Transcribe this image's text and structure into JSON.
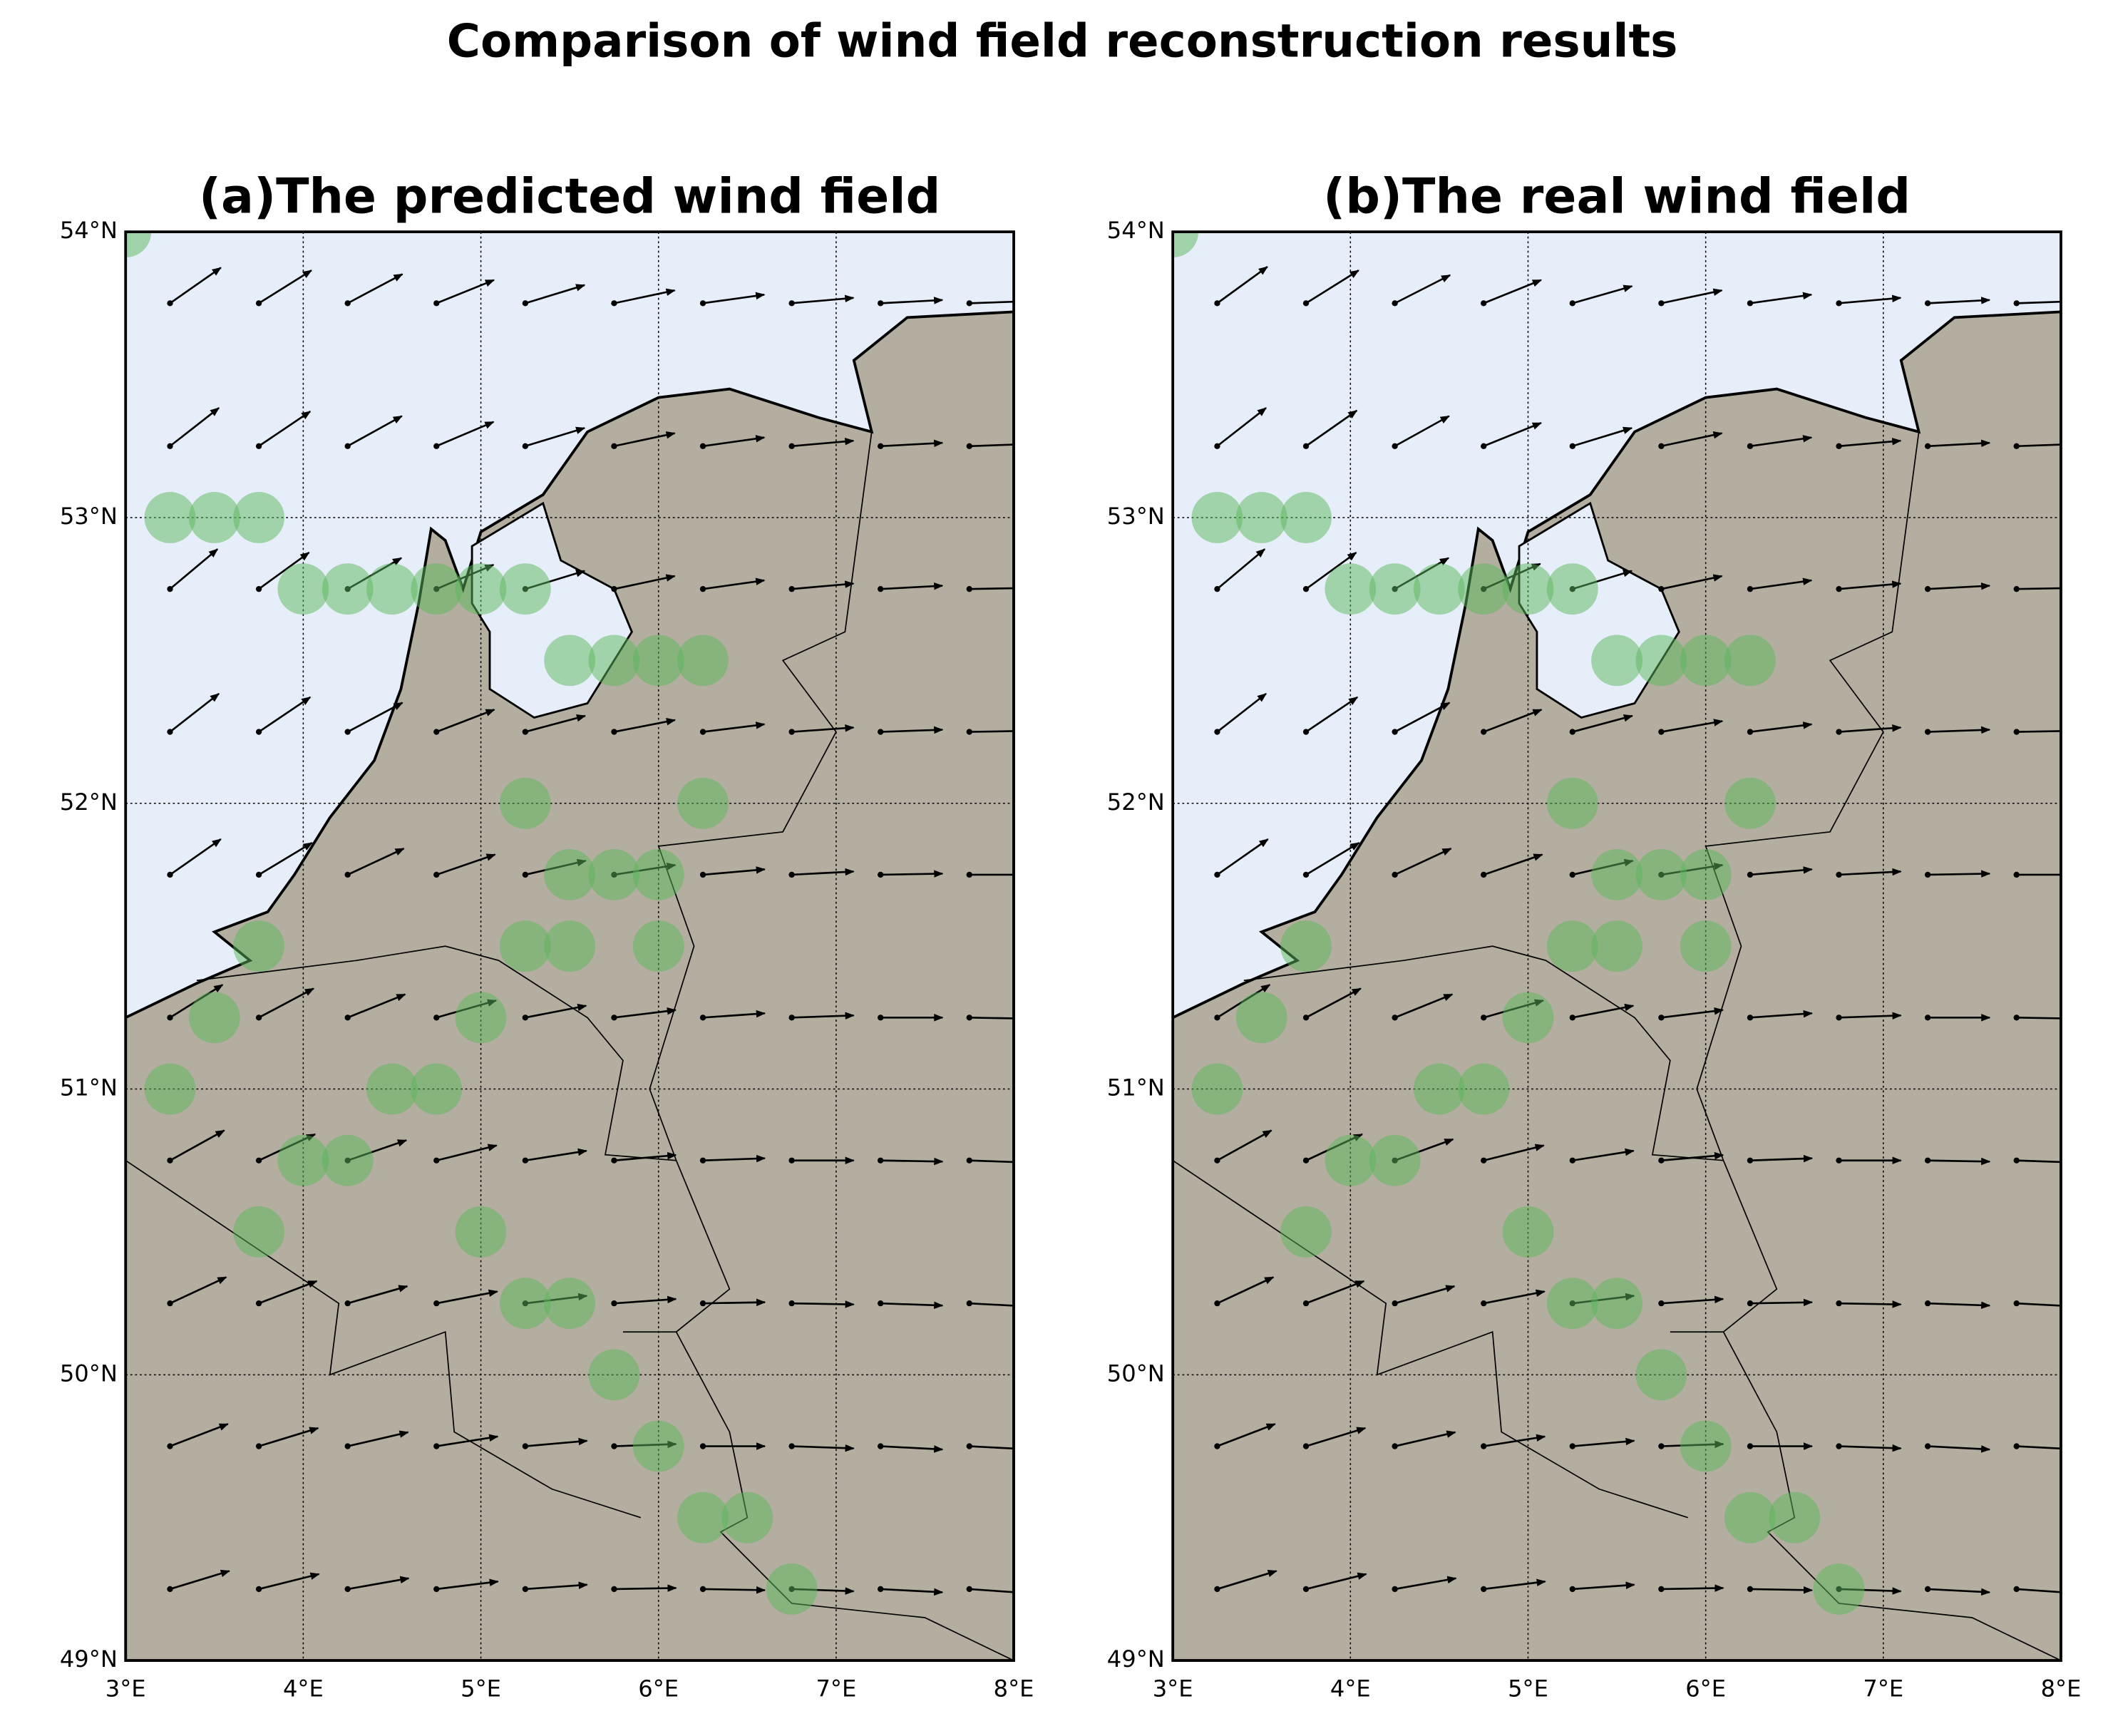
{
  "title": "Comparison of wind field reconstruction results",
  "chart_data": [
    {
      "type": "quiver",
      "title": "(a)The predicted wind field",
      "xlim": [
        3,
        8
      ],
      "ylim": [
        49,
        54
      ],
      "xticks": [
        {
          "value": 3,
          "label": "3°E"
        },
        {
          "value": 4,
          "label": "4°E"
        },
        {
          "value": 5,
          "label": "5°E"
        },
        {
          "value": 6,
          "label": "6°E"
        },
        {
          "value": 7,
          "label": "7°E"
        },
        {
          "value": 8,
          "label": "8°E"
        }
      ],
      "yticks": [
        {
          "value": 49,
          "label": "49°N"
        },
        {
          "value": 50,
          "label": "50°N"
        },
        {
          "value": 51,
          "label": "51°N"
        },
        {
          "value": 52,
          "label": "52°N"
        },
        {
          "value": 53,
          "label": "53°N"
        },
        {
          "value": 54,
          "label": "54°N"
        }
      ],
      "grid": true,
      "grid_lon": [
        3.25,
        3.75,
        4.25,
        4.75,
        5.25,
        5.75,
        6.25,
        6.75,
        7.25,
        7.75
      ],
      "grid_lat": [
        53.75,
        53.25,
        52.75,
        52.25,
        51.75,
        51.25,
        50.75,
        50.25,
        49.75,
        49.25
      ],
      "direction": [
        [
          35,
          32,
          28,
          22,
          17,
          12,
          8,
          5,
          3,
          2
        ],
        [
          38,
          34,
          29,
          23,
          17,
          12,
          8,
          5,
          3,
          2
        ],
        [
          40,
          36,
          30,
          23,
          17,
          12,
          8,
          5,
          3,
          1
        ],
        [
          38,
          34,
          28,
          21,
          15,
          11,
          7,
          4,
          2,
          1
        ],
        [
          35,
          31,
          25,
          19,
          13,
          9,
          5,
          3,
          1,
          0
        ],
        [
          32,
          28,
          22,
          16,
          11,
          7,
          4,
          2,
          0,
          -1
        ],
        [
          29,
          25,
          19,
          14,
          9,
          5,
          2,
          0,
          -1,
          -2
        ],
        [
          25,
          21,
          16,
          11,
          7,
          4,
          1,
          -1,
          -2,
          -3
        ],
        [
          21,
          17,
          13,
          9,
          5,
          2,
          0,
          -2,
          -3,
          -3
        ],
        [
          17,
          14,
          10,
          7,
          4,
          1,
          -1,
          -2,
          -3,
          -4
        ]
      ],
      "arrow_color": "#000000",
      "land_color": "#b3ae9f",
      "water_color": "#e6eef9",
      "station_color": "#5cb85c",
      "stations": {
        "lon": [
          3,
          3.25,
          3.5,
          3.75,
          4,
          4.25,
          4.5,
          4.75,
          5,
          5.25,
          5.5,
          5.75,
          6,
          6.25,
          5.25,
          6.25,
          5.5,
          5.75,
          6,
          3.75,
          5.25,
          5.5,
          6,
          3.5,
          5,
          3.25,
          4.5,
          4.75,
          4,
          4.25,
          3.75,
          5,
          5.25,
          5.5,
          5.75,
          6,
          6.25,
          6.5,
          6.75
        ],
        "lat": [
          54,
          53,
          53,
          53,
          52.75,
          52.75,
          52.75,
          52.75,
          52.75,
          52.75,
          52.5,
          52.5,
          52.5,
          52.5,
          52,
          52,
          51.75,
          51.75,
          51.75,
          51.5,
          51.5,
          51.5,
          51.5,
          51.25,
          51.25,
          51,
          51,
          51,
          50.75,
          50.75,
          50.5,
          50.5,
          50.25,
          50.25,
          50,
          49.75,
          49.5,
          49.5,
          49.25
        ]
      }
    },
    {
      "type": "quiver",
      "title": "(b)The real wind field",
      "xlim": [
        3,
        8
      ],
      "ylim": [
        49,
        54
      ],
      "xticks": [
        {
          "value": 3,
          "label": "3°E"
        },
        {
          "value": 4,
          "label": "4°E"
        },
        {
          "value": 5,
          "label": "5°E"
        },
        {
          "value": 6,
          "label": "6°E"
        },
        {
          "value": 7,
          "label": "7°E"
        },
        {
          "value": 8,
          "label": "8°E"
        }
      ],
      "yticks": [
        {
          "value": 49,
          "label": "49°N"
        },
        {
          "value": 50,
          "label": "50°N"
        },
        {
          "value": 51,
          "label": "51°N"
        },
        {
          "value": 52,
          "label": "52°N"
        },
        {
          "value": 53,
          "label": "53°N"
        },
        {
          "value": 54,
          "label": "54°N"
        }
      ],
      "grid": true,
      "grid_lon": [
        3.25,
        3.75,
        4.25,
        4.75,
        5.25,
        5.75,
        6.25,
        6.75,
        7.25,
        7.75
      ],
      "grid_lat": [
        53.75,
        53.25,
        52.75,
        52.25,
        51.75,
        51.25,
        50.75,
        50.25,
        49.75,
        49.25
      ],
      "direction": [
        [
          36,
          32,
          27,
          22,
          16,
          12,
          8,
          5,
          3,
          2
        ],
        [
          38,
          35,
          29,
          22,
          17,
          12,
          8,
          5,
          3,
          2
        ],
        [
          40,
          36,
          30,
          24,
          17,
          12,
          8,
          5,
          3,
          1
        ],
        [
          38,
          34,
          28,
          21,
          15,
          10,
          7,
          4,
          2,
          1
        ],
        [
          35,
          31,
          25,
          19,
          13,
          9,
          5,
          3,
          1,
          0
        ],
        [
          32,
          28,
          22,
          16,
          11,
          7,
          4,
          2,
          0,
          -1
        ],
        [
          29,
          25,
          20,
          14,
          9,
          5,
          2,
          0,
          -1,
          -2
        ],
        [
          25,
          21,
          16,
          11,
          7,
          4,
          1,
          -1,
          -2,
          -3
        ],
        [
          21,
          17,
          13,
          9,
          5,
          2,
          0,
          -2,
          -3,
          -3
        ],
        [
          17,
          14,
          10,
          7,
          4,
          1,
          -1,
          -2,
          -3,
          -4
        ]
      ],
      "arrow_color": "#000000",
      "land_color": "#b3ae9f",
      "water_color": "#e6eef9",
      "station_color": "#5cb85c",
      "stations": {
        "lon": [
          3,
          3.25,
          3.5,
          3.75,
          4,
          4.25,
          4.5,
          4.75,
          5,
          5.25,
          5.5,
          5.75,
          6,
          6.25,
          5.25,
          6.25,
          5.5,
          5.75,
          6,
          3.75,
          5.25,
          5.5,
          6,
          3.5,
          5,
          3.25,
          4.5,
          4.75,
          4,
          4.25,
          3.75,
          5,
          5.25,
          5.5,
          5.75,
          6,
          6.25,
          6.5,
          6.75
        ],
        "lat": [
          54,
          53,
          53,
          53,
          52.75,
          52.75,
          52.75,
          52.75,
          52.75,
          52.75,
          52.5,
          52.5,
          52.5,
          52.5,
          52,
          52,
          51.75,
          51.75,
          51.75,
          51.5,
          51.5,
          51.5,
          51.5,
          51.25,
          51.25,
          51,
          51,
          51,
          50.75,
          50.75,
          50.5,
          50.5,
          50.25,
          50.25,
          50,
          49.75,
          49.5,
          49.5,
          49.25
        ]
      }
    }
  ]
}
